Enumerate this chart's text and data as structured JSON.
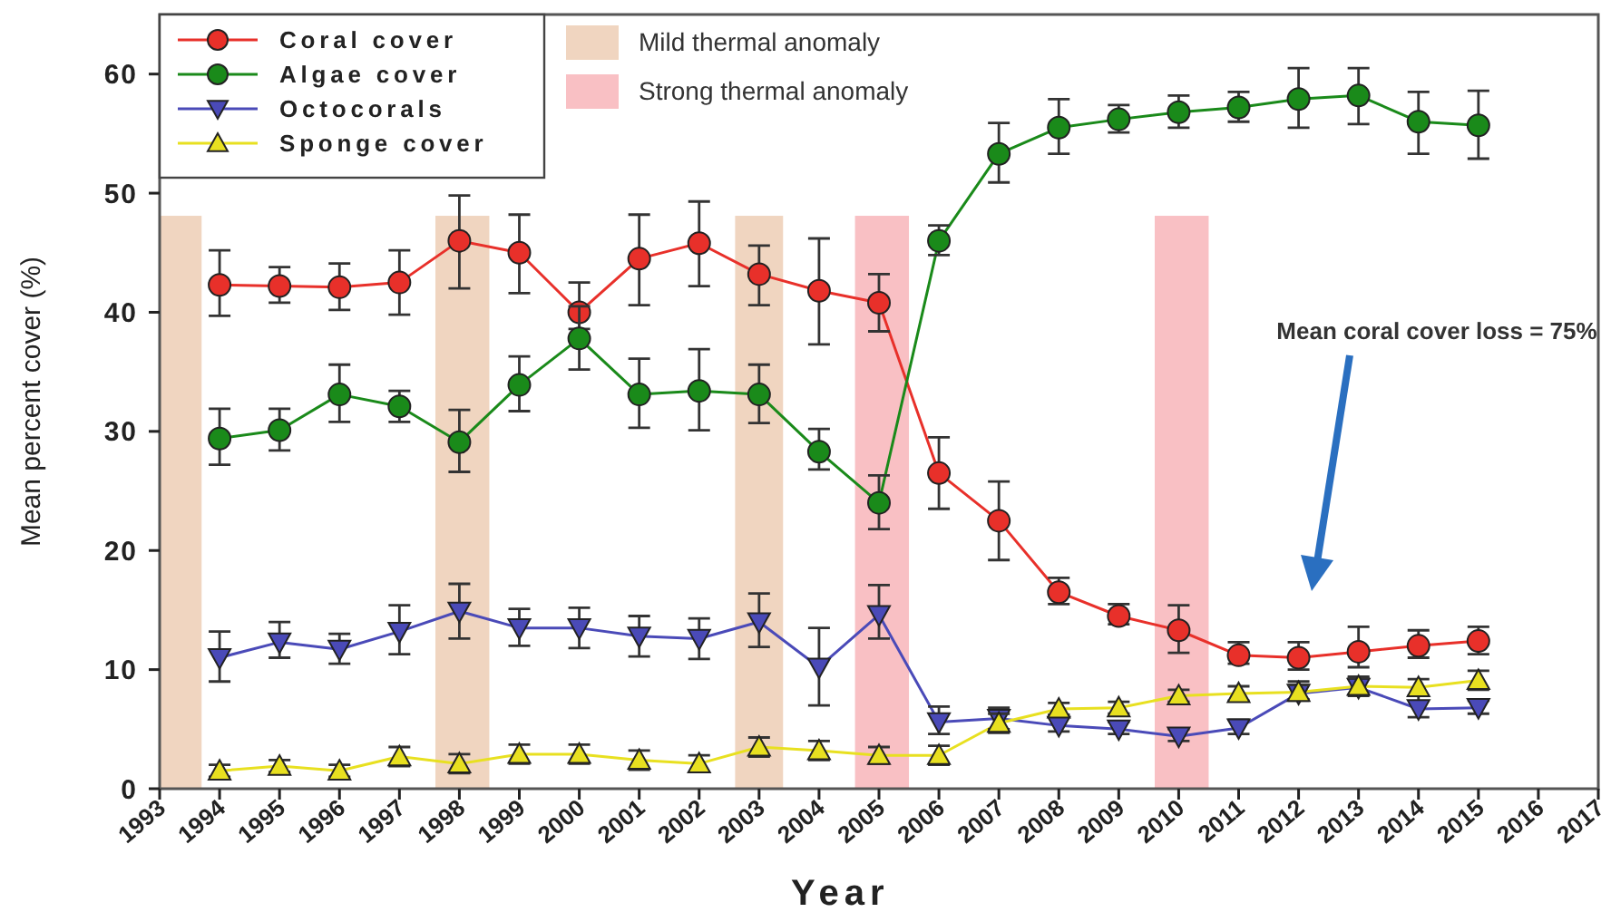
{
  "chart_data": {
    "type": "line",
    "xlabel": "Year",
    "ylabel": "Mean percent cover (%)",
    "x": [
      1994,
      1995,
      1996,
      1997,
      1998,
      1999,
      2000,
      2001,
      2002,
      2003,
      2004,
      2005,
      2006,
      2007,
      2008,
      2009,
      2010,
      2011,
      2012,
      2013,
      2014,
      2015
    ],
    "xlim": [
      1993,
      2017
    ],
    "xticks": [
      1993,
      1994,
      1995,
      1996,
      1997,
      1998,
      1999,
      2000,
      2001,
      2002,
      2003,
      2004,
      2005,
      2006,
      2007,
      2008,
      2009,
      2010,
      2011,
      2012,
      2013,
      2014,
      2015,
      2016,
      2017
    ],
    "ylim": [
      0,
      65
    ],
    "yticks": [
      0,
      10,
      20,
      30,
      40,
      50,
      60
    ],
    "grid": false,
    "legend": "top left",
    "line_style": "solid",
    "series": [
      {
        "name": "Coral cover",
        "color": "#e8302a",
        "marker": "circle",
        "values": [
          42.3,
          42.2,
          42.1,
          42.5,
          46,
          45,
          40,
          44.5,
          45.8,
          43.2,
          41.8,
          40.8,
          26.5,
          22.5,
          16.5,
          14.5,
          13.3,
          11.2,
          11,
          11.5,
          12,
          12.4
        ],
        "errors": [
          [
            39.7,
            45.2
          ],
          [
            40.8,
            43.8
          ],
          [
            40.2,
            44.1
          ],
          [
            39.8,
            45.2
          ],
          [
            42,
            49.8
          ],
          [
            41.6,
            48.2
          ],
          [
            38.6,
            42.5
          ],
          [
            40.6,
            48.2
          ],
          [
            42.2,
            49.3
          ],
          [
            40.6,
            45.6
          ],
          [
            37.3,
            46.2
          ],
          [
            38.4,
            43.2
          ],
          [
            23.5,
            29.5
          ],
          [
            19.2,
            25.8
          ],
          [
            15.5,
            17.7
          ],
          [
            13.8,
            15.5
          ],
          [
            11.4,
            15.4
          ],
          [
            10.5,
            12.3
          ],
          [
            10,
            12.3
          ],
          [
            10.2,
            13.6
          ],
          [
            11,
            13.3
          ],
          [
            11.3,
            13.6
          ]
        ]
      },
      {
        "name": "Algae cover",
        "color": "#1a8a1a",
        "marker": "circle",
        "values": [
          29.4,
          30.1,
          33.1,
          32.1,
          29.1,
          33.9,
          37.8,
          33.1,
          33.4,
          33.1,
          28.3,
          24,
          46,
          53.3,
          55.5,
          56.2,
          56.8,
          57.2,
          57.9,
          58.2,
          56,
          55.7
        ],
        "errors": [
          [
            27.2,
            31.9
          ],
          [
            28.4,
            31.9
          ],
          [
            30.8,
            35.6
          ],
          [
            30.8,
            33.4
          ],
          [
            26.6,
            31.8
          ],
          [
            31.7,
            36.3
          ],
          [
            35.2,
            40.5
          ],
          [
            30.3,
            36.1
          ],
          [
            30.1,
            36.9
          ],
          [
            30.7,
            35.6
          ],
          [
            26.8,
            30.2
          ],
          [
            21.8,
            26.3
          ],
          [
            44.8,
            47.3
          ],
          [
            50.9,
            55.9
          ],
          [
            53.3,
            57.9
          ],
          [
            55.1,
            57.4
          ],
          [
            55.5,
            58.2
          ],
          [
            56,
            58.5
          ],
          [
            55.5,
            60.5
          ],
          [
            55.8,
            60.5
          ],
          [
            53.3,
            58.5
          ],
          [
            52.9,
            58.6
          ]
        ]
      },
      {
        "name": "Octocorals",
        "color": "#4a4ab8",
        "marker": "triangle-down",
        "values": [
          11,
          12.3,
          11.7,
          13.2,
          14.9,
          13.5,
          13.5,
          12.8,
          12.6,
          14,
          10.2,
          14.6,
          5.6,
          5.9,
          5.3,
          5,
          4.4,
          5.1,
          8,
          8.5,
          6.7,
          6.8
        ],
        "errors": [
          [
            9,
            13.2
          ],
          [
            11,
            14
          ],
          [
            10.5,
            13
          ],
          [
            11.3,
            15.4
          ],
          [
            12.6,
            17.2
          ],
          [
            12,
            15.1
          ],
          [
            11.8,
            15.2
          ],
          [
            11.1,
            14.5
          ],
          [
            10.9,
            14.3
          ],
          [
            11.9,
            16.4
          ],
          [
            7,
            13.5
          ],
          [
            12.6,
            17.1
          ],
          [
            4.6,
            6.9
          ],
          [
            5,
            6.8
          ],
          [
            4.8,
            6.2
          ],
          [
            4.6,
            5.6
          ],
          [
            4,
            5
          ],
          [
            4.6,
            5.8
          ],
          [
            7.4,
            9
          ],
          [
            7.8,
            9.4
          ],
          [
            6,
            7.8
          ],
          [
            6.3,
            7.4
          ]
        ]
      },
      {
        "name": "Sponge cover",
        "color": "#e8e020",
        "marker": "triangle",
        "values": [
          1.5,
          1.9,
          1.5,
          2.7,
          2.1,
          2.9,
          2.9,
          2.4,
          2.1,
          3.5,
          3.2,
          2.8,
          2.8,
          5.5,
          6.7,
          6.8,
          7.8,
          8,
          8.1,
          8.6,
          8.5,
          9.1
        ],
        "errors": [
          0.5,
          0.5,
          0.5,
          0.8,
          0.8,
          0.8,
          0.8,
          0.8,
          0.7,
          0.8,
          0.8,
          0.7,
          0.8,
          0.8,
          0.5,
          0.5,
          0.5,
          0.6,
          0.6,
          0.7,
          0.7,
          0.8
        ]
      }
    ],
    "bands": [
      {
        "axis": "x",
        "from": 1993,
        "to": 1993.7,
        "label": "Mild thermal anomaly",
        "color": "#f0d5c0"
      },
      {
        "axis": "x",
        "from": 1997.6,
        "to": 1998.5,
        "color": "#f0d5c0"
      },
      {
        "axis": "x",
        "from": 2002.6,
        "to": 2003.4,
        "color": "#f0d5c0"
      },
      {
        "axis": "x",
        "from": 2004.6,
        "to": 2005.5,
        "label": "Strong thermal anomaly",
        "color": "#f9c0c4"
      },
      {
        "axis": "x",
        "from": 2009.6,
        "to": 2010.5,
        "color": "#f9c0c4"
      }
    ],
    "annotations": [
      "Mean coral cover loss = 75%"
    ]
  }
}
